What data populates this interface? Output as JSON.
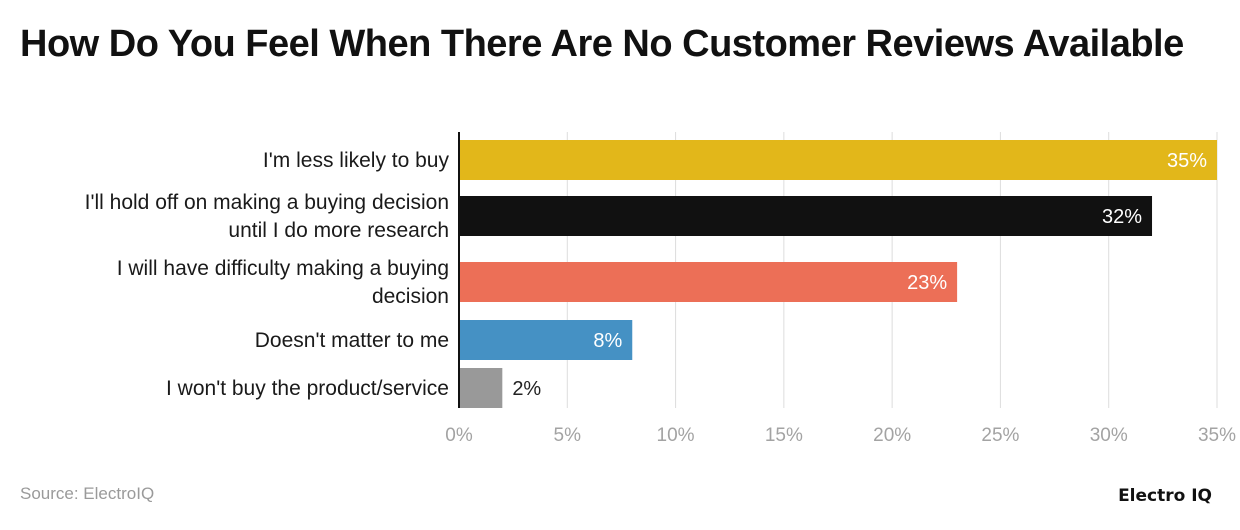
{
  "chart_data": {
    "type": "bar",
    "orientation": "horizontal",
    "title": "How Do You Feel When There Are No Customer Reviews Available",
    "categories": [
      [
        "I'm less likely to buy"
      ],
      [
        "I'll hold off on making a buying decision",
        "until I do more research"
      ],
      [
        "I will have difficulty making a buying",
        "decision"
      ],
      [
        "Doesn't matter to me"
      ],
      [
        "I won't buy the product/service"
      ]
    ],
    "values": [
      35,
      32,
      23,
      8,
      2
    ],
    "value_labels": [
      "35%",
      "32%",
      "23%",
      "8%",
      "2%"
    ],
    "colors": [
      "#E2B71A",
      "#111111",
      "#EC6F57",
      "#4591C4",
      "#999999"
    ],
    "xlim": [
      0,
      35
    ],
    "ticks": [
      0,
      5,
      10,
      15,
      20,
      25,
      30,
      35
    ],
    "tick_labels": [
      "0%",
      "5%",
      "10%",
      "15%",
      "20%",
      "25%",
      "30%",
      "35%"
    ],
    "grid": true,
    "xlabel": "",
    "ylabel": ""
  },
  "footer": {
    "source": "Source: ElectroIQ",
    "brand": "Electro IQ"
  }
}
